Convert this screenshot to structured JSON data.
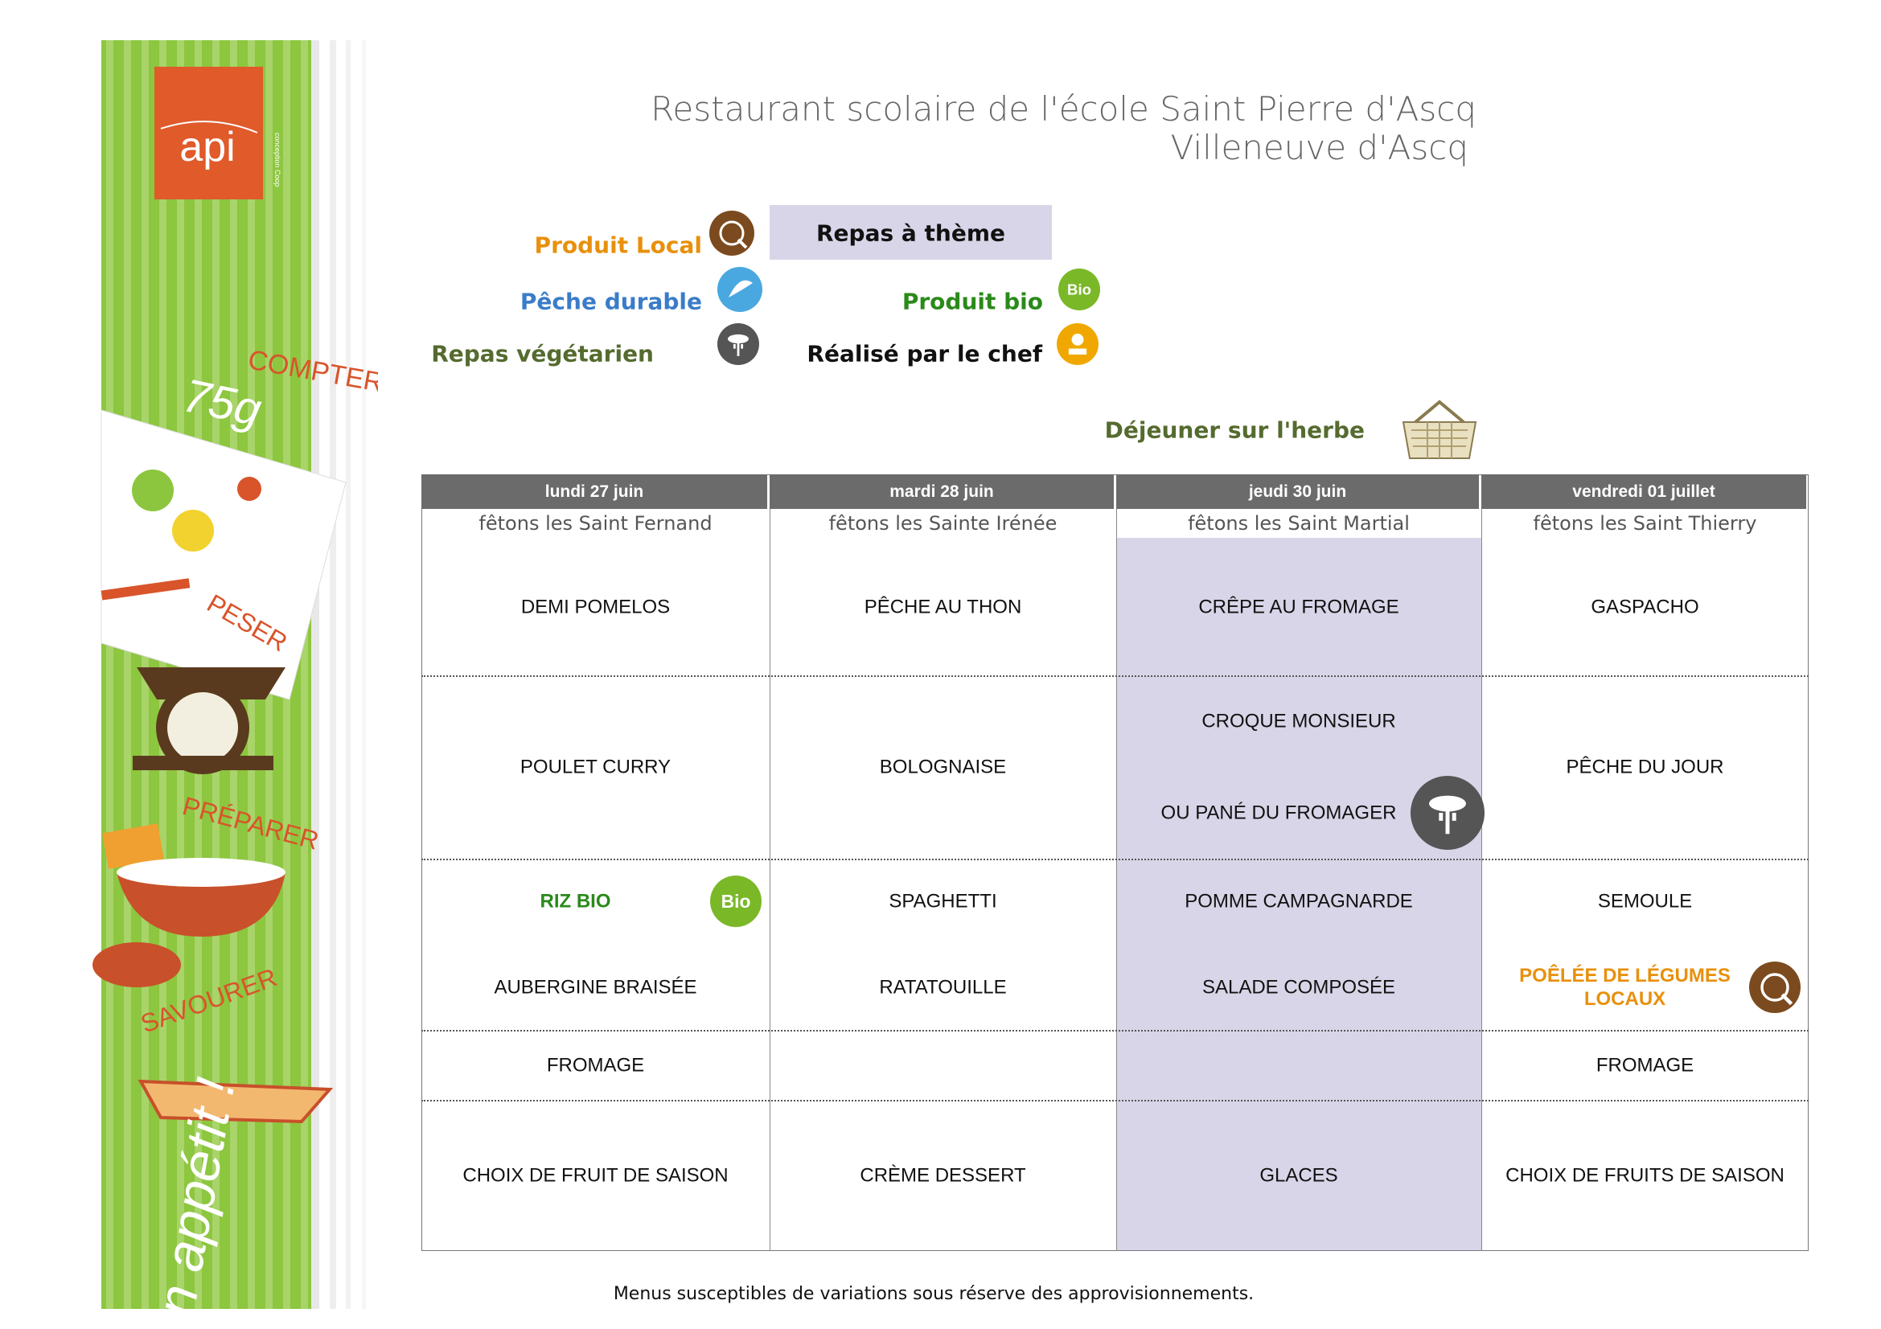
{
  "sidebar": {
    "logo": "api",
    "logo_small": "conception Coop",
    "words": [
      "COMPTER",
      "75g",
      "PESER",
      "PRÉPARER",
      "SAVOURER",
      "n appétit !"
    ]
  },
  "header": {
    "title": "Restaurant scolaire de l'école Saint Pierre d'Ascq",
    "subtitle": "Villeneuve d'Ascq"
  },
  "legend": {
    "local": "Produit Local",
    "theme": "Repas à thème",
    "peche": "Pêche durable",
    "bio": "Produit bio",
    "vege": "Repas végétarien",
    "chef": "Réalisé par le chef",
    "herbe": "Déjeuner sur l'herbe",
    "bio_icon": "Bio"
  },
  "table": {
    "days": [
      "lundi 27 juin",
      "mardi 28 juin",
      "jeudi 30 juin",
      "vendredi 01 juillet"
    ],
    "feasts": [
      "fêtons les Saint Fernand",
      "fêtons les Sainte Irénée",
      "fêtons les Saint Martial",
      "fêtons les Saint Thierry"
    ],
    "highlight_column": 2,
    "rows": [
      [
        [
          {
            "text": "DEMI POMELOS"
          }
        ],
        [
          {
            "text": "PÊCHE  AU THON"
          }
        ],
        [
          {
            "text": "CRÊPE AU FROMAGE"
          }
        ],
        [
          {
            "text": "GASPACHO"
          }
        ]
      ],
      [
        [
          {
            "text": "POULET CURRY"
          }
        ],
        [
          {
            "text": "BOLOGNAISE"
          }
        ],
        [
          {
            "text": "CROQUE MONSIEUR"
          },
          {
            "text": "OU PANÉ DU FROMAGER",
            "icon": "vege"
          }
        ],
        [
          {
            "text": "PÊCHE DU JOUR"
          }
        ]
      ],
      [
        [
          {
            "text": "RIZ BIO",
            "color": "#2a8a1a",
            "icon": "bio"
          },
          {
            "text": "AUBERGINE BRAISÉE"
          }
        ],
        [
          {
            "text": "SPAGHETTI"
          },
          {
            "text": "RATATOUILLE"
          }
        ],
        [
          {
            "text": "POMME CAMPAGNARDE"
          },
          {
            "text": "SALADE COMPOSÉE"
          }
        ],
        [
          {
            "text": "SEMOULE"
          },
          {
            "text": "POÊLÉE DE LÉGUMES LOCAUX",
            "color": "#e8900c",
            "icon": "local"
          }
        ]
      ],
      [
        [
          {
            "text": "FROMAGE"
          }
        ],
        [],
        [],
        [
          {
            "text": "FROMAGE"
          }
        ]
      ],
      [
        [
          {
            "text": "CHOIX DE FRUIT DE SAISON"
          }
        ],
        [
          {
            "text": "CRÈME DESSERT"
          }
        ],
        [
          {
            "text": "GLACES"
          }
        ],
        [
          {
            "text": "CHOIX DE FRUITS DE SAISON"
          }
        ]
      ]
    ]
  },
  "footer": "Menus susceptibles de variations sous réserve des approvisionnements."
}
